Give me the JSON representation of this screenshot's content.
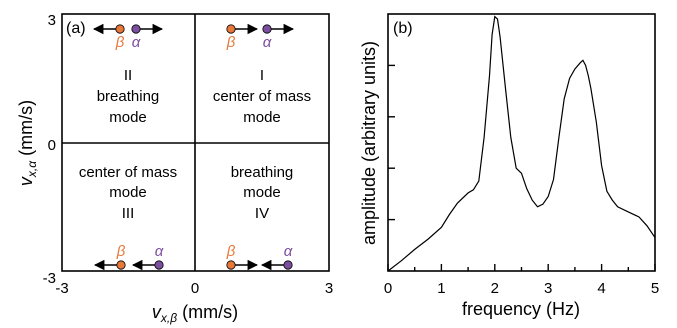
{
  "panel_a": {
    "label": "(a)",
    "x_axis": {
      "label_main": "v",
      "label_sub": "x,β",
      "units": "(mm/s)",
      "ticks": [
        "-3",
        "0",
        "3"
      ]
    },
    "y_axis": {
      "label_main": "v",
      "label_sub": "x,α",
      "units": "(mm/s)",
      "ticks": [
        "3",
        "0",
        "-3"
      ]
    },
    "quadrants": [
      {
        "id": "I",
        "numeral": "I",
        "line1": "center of mass",
        "line2": "mode"
      },
      {
        "id": "II",
        "numeral": "II",
        "line1": "breathing",
        "line2": "mode"
      },
      {
        "id": "III",
        "numeral": "III",
        "line1": "center of mass",
        "line2": "mode"
      },
      {
        "id": "IV",
        "numeral": "IV",
        "line1": "breathing",
        "line2": "mode"
      }
    ],
    "particles": {
      "beta": "β",
      "alpha": "α"
    },
    "colors": {
      "beta": "#e8783a",
      "alpha": "#7b4f9e"
    }
  },
  "panel_b": {
    "label": "(b)",
    "chart_data": {
      "type": "line",
      "xlabel": "frequency (Hz)",
      "ylabel": "amplitude (arbitrary units)",
      "xlim": [
        0,
        5
      ],
      "ylim": [
        0,
        5
      ],
      "x_ticks": [
        "0",
        "1",
        "2",
        "3",
        "4",
        "5"
      ],
      "grid": false,
      "series": [
        {
          "x": [
            0,
            0.25,
            0.5,
            0.75,
            1.0,
            1.15,
            1.3,
            1.5,
            1.6,
            1.7,
            1.8,
            1.9,
            1.95,
            2.0,
            2.05,
            2.1,
            2.2,
            2.3,
            2.4,
            2.5,
            2.6,
            2.7,
            2.8,
            2.9,
            3.0,
            3.1,
            3.2,
            3.3,
            3.4,
            3.5,
            3.6,
            3.65,
            3.7,
            3.75,
            3.8,
            3.9,
            4.0,
            4.1,
            4.2,
            4.3,
            4.5,
            4.7,
            4.85,
            5.0
          ],
          "y": [
            0,
            0.2,
            0.42,
            0.62,
            0.85,
            1.1,
            1.32,
            1.52,
            1.58,
            1.75,
            2.6,
            3.8,
            4.6,
            4.95,
            4.9,
            4.55,
            3.55,
            2.6,
            2.0,
            1.9,
            1.6,
            1.38,
            1.25,
            1.3,
            1.45,
            1.78,
            2.6,
            3.35,
            3.75,
            3.93,
            4.05,
            4.1,
            4.0,
            3.8,
            3.55,
            2.9,
            2.05,
            1.55,
            1.38,
            1.25,
            1.15,
            1.05,
            0.88,
            0.65
          ]
        }
      ]
    }
  }
}
